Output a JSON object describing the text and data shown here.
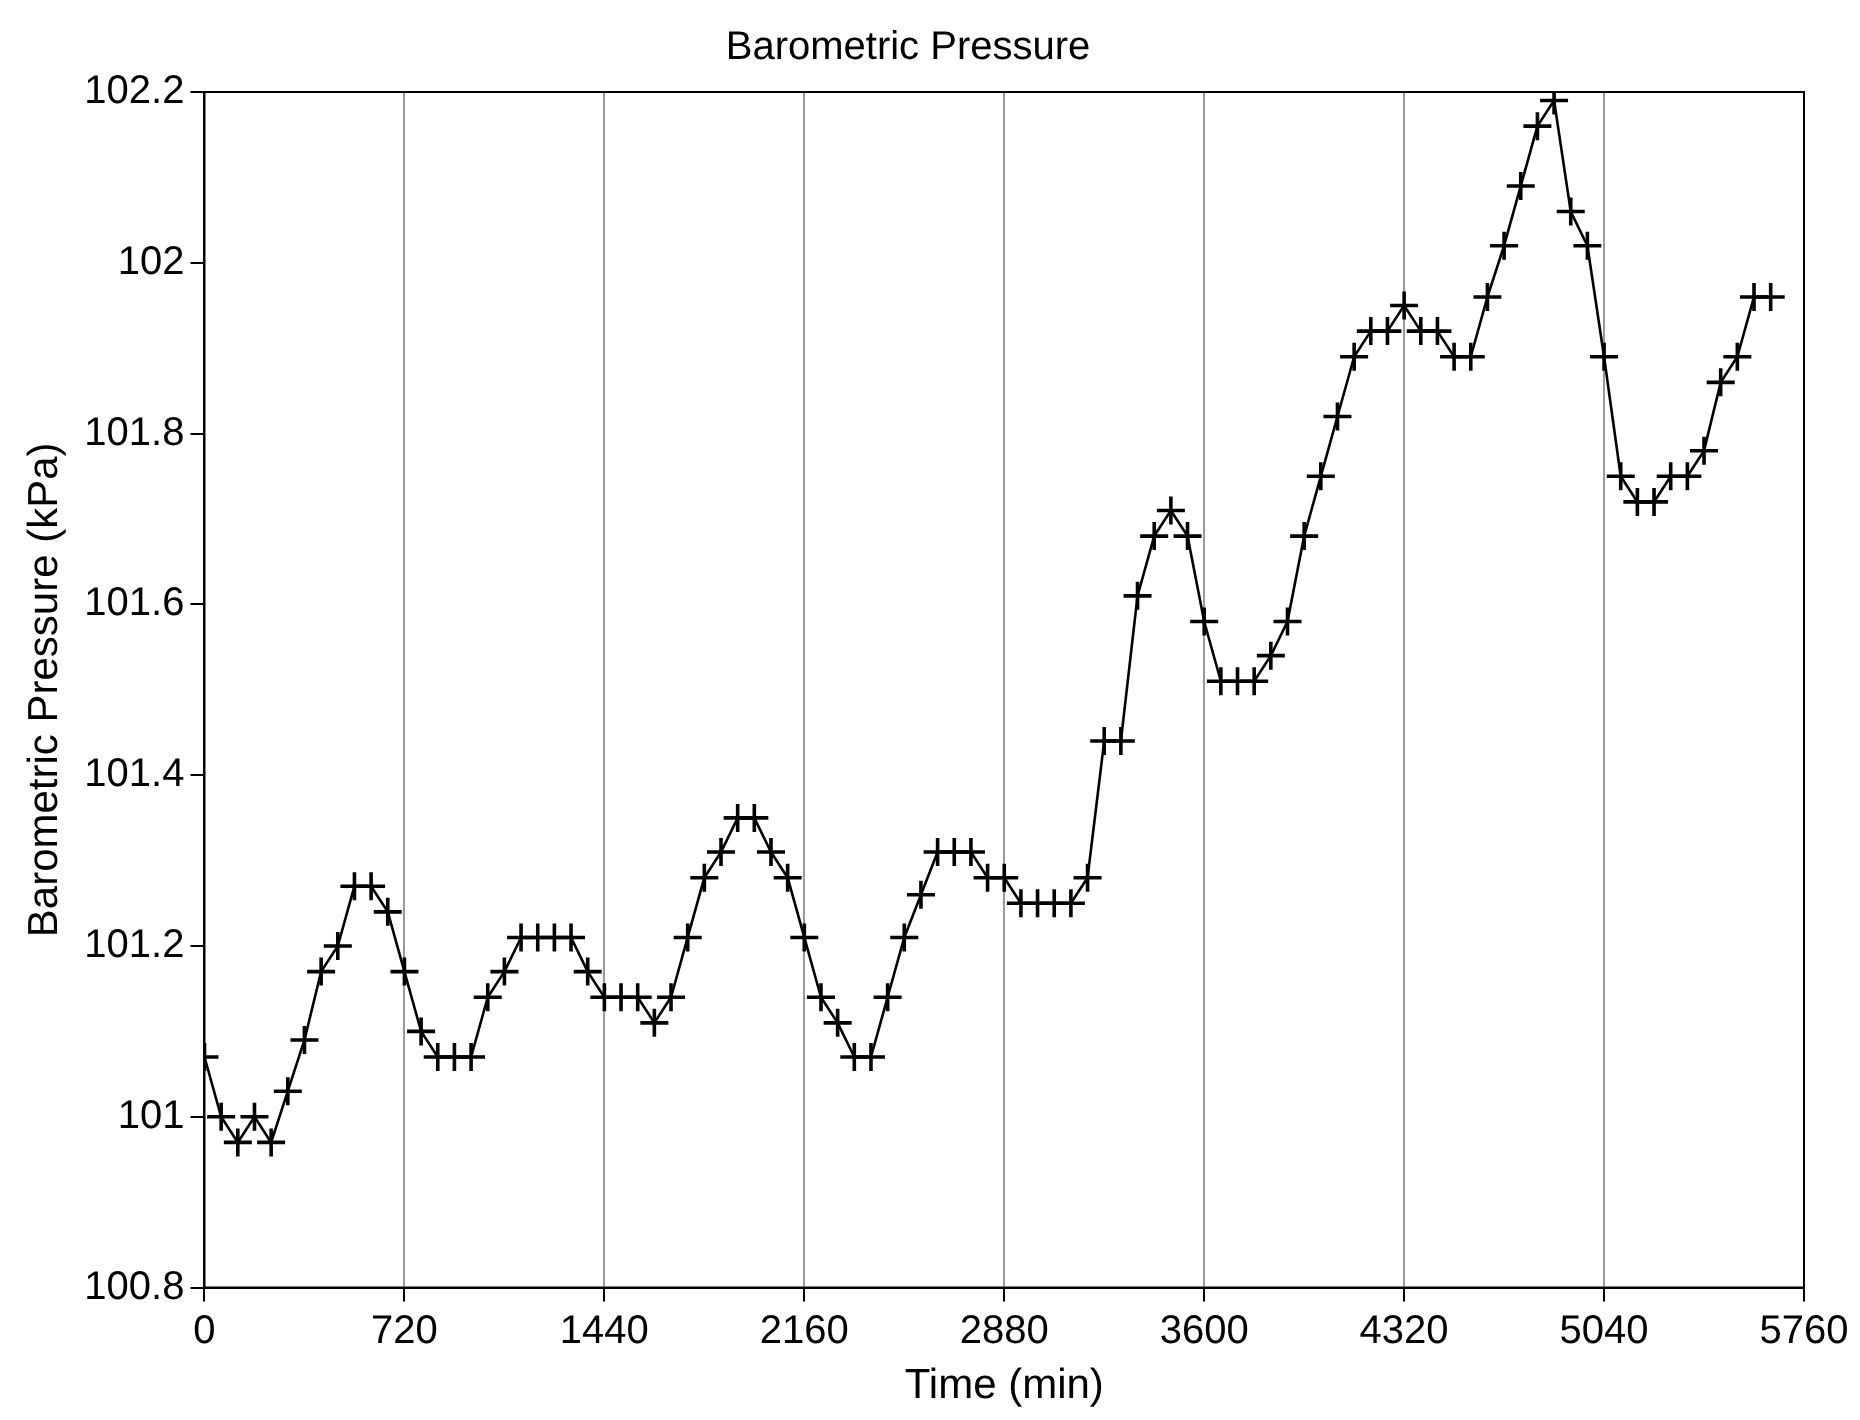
{
  "chart_data": {
    "type": "line",
    "title": "Barometric Pressure",
    "xlabel": "Time (min)",
    "ylabel": "Barometric Pressure (kPa)",
    "x": [
      0,
      60,
      120,
      180,
      240,
      300,
      360,
      420,
      480,
      540,
      600,
      660,
      720,
      780,
      840,
      900,
      960,
      1020,
      1080,
      1140,
      1200,
      1260,
      1320,
      1380,
      1440,
      1500,
      1560,
      1620,
      1680,
      1740,
      1800,
      1860,
      1920,
      1980,
      2040,
      2100,
      2160,
      2220,
      2280,
      2340,
      2400,
      2460,
      2520,
      2580,
      2640,
      2700,
      2760,
      2820,
      2880,
      2940,
      3000,
      3060,
      3120,
      3180,
      3240,
      3300,
      3360,
      3420,
      3480,
      3540,
      3600,
      3660,
      3720,
      3780,
      3840,
      3900,
      3960,
      4020,
      4080,
      4140,
      4200,
      4260,
      4320,
      4380,
      4440,
      4500,
      4560,
      4620,
      4680,
      4740,
      4800,
      4860,
      4920,
      4980,
      5040,
      5100,
      5160,
      5220,
      5280,
      5340,
      5400,
      5460,
      5520,
      5580,
      5640
    ],
    "series": [
      {
        "color": "#000000",
        "values": [
          101.07,
          101.0,
          100.97,
          101.0,
          100.97,
          101.03,
          101.09,
          101.17,
          101.2,
          101.27,
          101.27,
          101.24,
          101.17,
          101.1,
          101.07,
          101.07,
          101.07,
          101.14,
          101.17,
          101.21,
          101.21,
          101.21,
          101.21,
          101.17,
          101.14,
          101.14,
          101.14,
          101.11,
          101.14,
          101.21,
          101.28,
          101.31,
          101.35,
          101.35,
          101.31,
          101.28,
          101.21,
          101.14,
          101.11,
          101.07,
          101.07,
          101.14,
          101.21,
          101.26,
          101.31,
          101.31,
          101.31,
          101.28,
          101.28,
          101.25,
          101.25,
          101.25,
          101.25,
          101.28,
          101.44,
          101.44,
          101.61,
          101.68,
          101.71,
          101.68,
          101.58,
          101.51,
          101.51,
          101.51,
          101.54,
          101.58,
          101.68,
          101.75,
          101.82,
          101.89,
          101.92,
          101.92,
          101.95,
          101.92,
          101.92,
          101.89,
          101.89,
          101.96,
          102.02,
          102.09,
          102.16,
          102.19,
          102.06,
          102.02,
          101.89,
          101.75,
          101.72,
          101.72,
          101.75,
          101.75,
          101.78,
          101.86,
          101.89,
          101.96,
          101.96
        ]
      }
    ],
    "xlim": [
      0,
      5760
    ],
    "xticks": [
      0,
      720,
      1440,
      2160,
      2880,
      3600,
      4320,
      5040,
      5760
    ],
    "ylim": [
      100.8,
      102.2
    ],
    "yticks": [
      100.8,
      101,
      101.2,
      101.4,
      101.6,
      101.8,
      102,
      102.2
    ],
    "grid": "x",
    "legend": false,
    "marker": "cross",
    "line_style": "solid"
  }
}
